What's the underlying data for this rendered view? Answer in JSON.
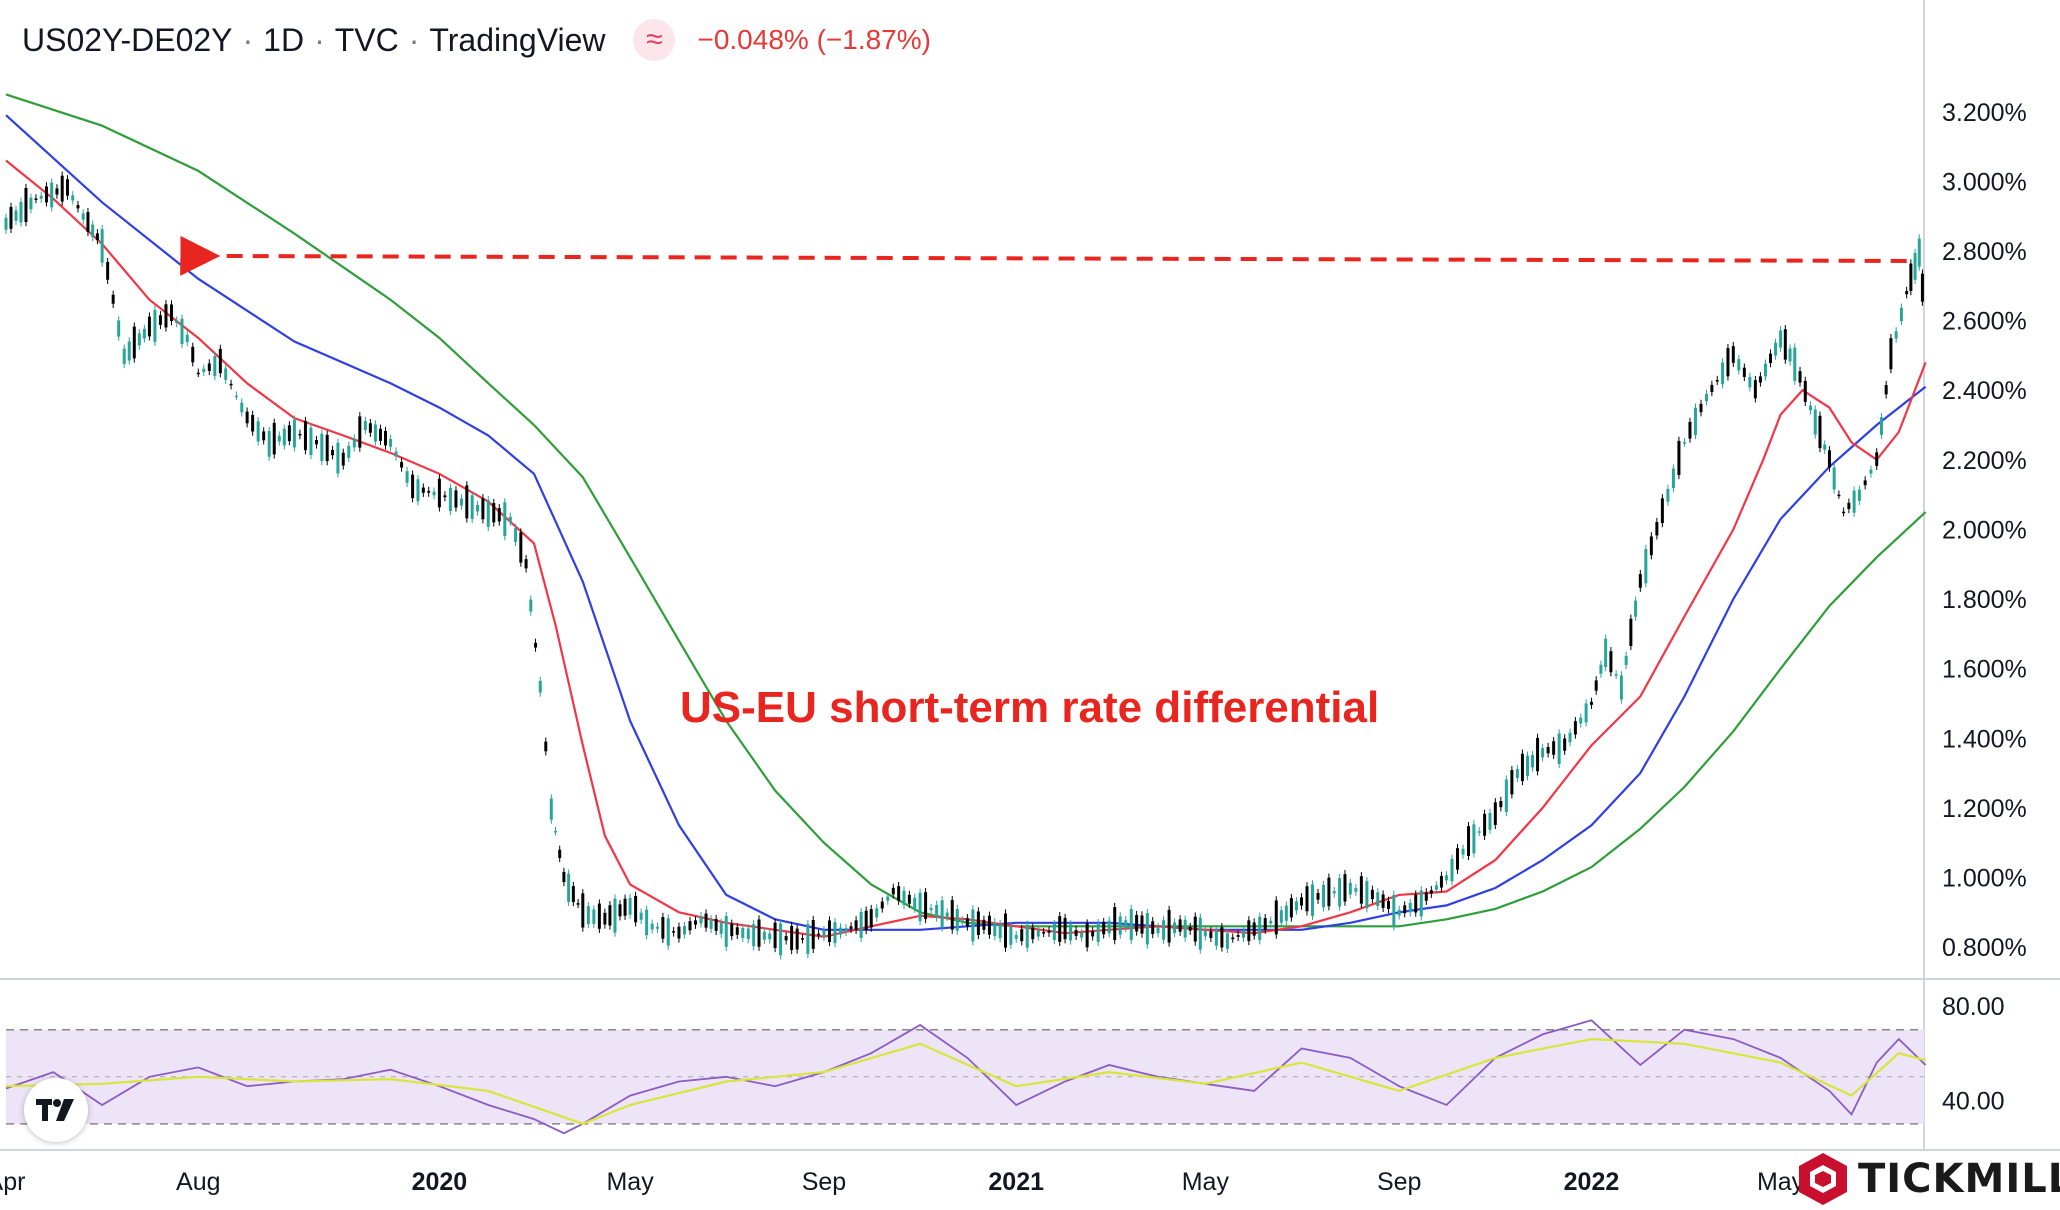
{
  "header": {
    "symbol": "US02Y-DE02Y",
    "interval": "1D",
    "exchange": "TVC",
    "source": "TradingView",
    "change": "−0.048% (−1.87%)",
    "indicator_icon": "wave-icon"
  },
  "annotation": {
    "text": "US-EU short-term rate differential",
    "color": "#e8261f"
  },
  "brand": {
    "name": "TICKMILL",
    "logo_icon": "tickmill-logo-icon"
  },
  "colors": {
    "up": "#26a69a",
    "down": "#000000",
    "ma_fast": "#f23645",
    "ma_mid": "#2e3fe6",
    "ma_slow": "#2e9e3a",
    "rsi": "#8c5bc4",
    "rsi_ma": "#d8e63a",
    "rsi_band": "#ede4f7",
    "annotation": "#e8261f"
  },
  "chart_data": [
    {
      "type": "line",
      "title": "US02Y-DE02Y",
      "y_axis": {
        "ticks": [
          "3.200%",
          "3.000%",
          "2.800%",
          "2.600%",
          "2.400%",
          "2.200%",
          "2.000%",
          "1.800%",
          "1.600%",
          "1.400%",
          "1.200%",
          "1.000%",
          "0.800%"
        ],
        "range": [
          0.72,
          3.32
        ],
        "unit": "%"
      },
      "x_axis": {
        "ticks": [
          "Apr",
          "Aug",
          "2020",
          "May",
          "Sep",
          "2021",
          "May",
          "Sep",
          "2022",
          "May"
        ],
        "bold_ticks": [
          "2020",
          "2021",
          "2022"
        ],
        "range": [
          "2019-04",
          "2022-07"
        ]
      },
      "series": [
        {
          "role": "price",
          "x": [
            "2019-04-01",
            "2019-04-20",
            "2019-05-10",
            "2019-05-20",
            "2019-06-01",
            "2019-06-15",
            "2019-07-01",
            "2019-07-15",
            "2019-07-25",
            "2019-08-01",
            "2019-08-15",
            "2019-09-01",
            "2019-09-15",
            "2019-10-01",
            "2019-10-15",
            "2019-11-01",
            "2019-11-15",
            "2019-12-01",
            "2019-12-15",
            "2020-01-01",
            "2020-01-15",
            "2020-02-01",
            "2020-02-15",
            "2020-02-25",
            "2020-03-05",
            "2020-03-12",
            "2020-03-20",
            "2020-04-01",
            "2020-04-15",
            "2020-05-01",
            "2020-05-15",
            "2020-06-01",
            "2020-06-15",
            "2020-07-01",
            "2020-07-15",
            "2020-08-01",
            "2020-08-15",
            "2020-09-01",
            "2020-09-15",
            "2020-10-01",
            "2020-10-15",
            "2020-11-01",
            "2020-11-15",
            "2020-12-01",
            "2020-12-15",
            "2021-01-01",
            "2021-01-15",
            "2021-02-01",
            "2021-02-15",
            "2021-03-01",
            "2021-03-15",
            "2021-04-01",
            "2021-04-15",
            "2021-05-01",
            "2021-05-15",
            "2021-06-01",
            "2021-06-15",
            "2021-07-01",
            "2021-07-15",
            "2021-08-01",
            "2021-08-15",
            "2021-09-01",
            "2021-09-15",
            "2021-10-01",
            "2021-10-15",
            "2021-11-01",
            "2021-11-15",
            "2021-12-01",
            "2021-12-15",
            "2022-01-01",
            "2022-01-10",
            "2022-01-20",
            "2022-02-01",
            "2022-02-15",
            "2022-03-01",
            "2022-03-15",
            "2022-04-01",
            "2022-04-15",
            "2022-05-01",
            "2022-05-10",
            "2022-05-20",
            "2022-06-01",
            "2022-06-10",
            "2022-06-20",
            "2022-07-01",
            "2022-07-10",
            "2022-07-20",
            "2022-07-28",
            "2022-08-01"
          ],
          "values": [
            2.88,
            2.95,
            2.98,
            2.9,
            2.82,
            2.5,
            2.58,
            2.62,
            2.55,
            2.45,
            2.48,
            2.32,
            2.25,
            2.28,
            2.25,
            2.2,
            2.3,
            2.25,
            2.12,
            2.1,
            2.08,
            2.05,
            2.03,
            1.9,
            1.55,
            1.2,
            1.0,
            0.9,
            0.88,
            0.92,
            0.86,
            0.84,
            0.88,
            0.85,
            0.84,
            0.83,
            0.82,
            0.84,
            0.85,
            0.88,
            0.96,
            0.92,
            0.9,
            0.87,
            0.86,
            0.83,
            0.84,
            0.85,
            0.83,
            0.86,
            0.87,
            0.85,
            0.86,
            0.84,
            0.82,
            0.85,
            0.88,
            0.93,
            0.95,
            0.97,
            0.95,
            0.9,
            0.93,
            1.0,
            1.1,
            1.18,
            1.3,
            1.36,
            1.38,
            1.5,
            1.65,
            1.55,
            1.85,
            2.05,
            2.25,
            2.38,
            2.5,
            2.4,
            2.55,
            2.48,
            2.35,
            2.2,
            2.05,
            2.1,
            2.2,
            2.5,
            2.68,
            2.8,
            2.58
          ]
        },
        {
          "role": "moving-average-fast",
          "x": [
            "2019-04-01",
            "2019-05-01",
            "2019-06-01",
            "2019-07-01",
            "2019-08-01",
            "2019-09-01",
            "2019-10-01",
            "2019-11-01",
            "2019-12-01",
            "2020-01-01",
            "2020-02-01",
            "2020-03-01",
            "2020-03-15",
            "2020-04-01",
            "2020-04-15",
            "2020-05-01",
            "2020-06-01",
            "2020-07-01",
            "2020-08-01",
            "2020-09-01",
            "2020-10-01",
            "2020-11-01",
            "2020-12-01",
            "2021-01-01",
            "2021-02-01",
            "2021-03-01",
            "2021-04-01",
            "2021-05-01",
            "2021-06-01",
            "2021-07-01",
            "2021-08-01",
            "2021-09-01",
            "2021-10-01",
            "2021-11-01",
            "2021-12-01",
            "2022-01-01",
            "2022-02-01",
            "2022-03-01",
            "2022-04-01",
            "2022-04-20",
            "2022-05-01",
            "2022-05-15",
            "2022-06-01",
            "2022-06-15",
            "2022-07-01",
            "2022-07-15",
            "2022-08-01"
          ],
          "values": [
            3.06,
            2.95,
            2.82,
            2.66,
            2.55,
            2.42,
            2.32,
            2.27,
            2.22,
            2.16,
            2.08,
            1.96,
            1.72,
            1.38,
            1.12,
            0.98,
            0.9,
            0.87,
            0.85,
            0.83,
            0.86,
            0.89,
            0.88,
            0.86,
            0.84,
            0.85,
            0.86,
            0.85,
            0.84,
            0.86,
            0.9,
            0.95,
            0.96,
            1.05,
            1.2,
            1.38,
            1.52,
            1.75,
            2.0,
            2.2,
            2.33,
            2.4,
            2.35,
            2.25,
            2.2,
            2.28,
            2.48
          ]
        },
        {
          "role": "moving-average-mid",
          "x": [
            "2019-04-01",
            "2019-06-01",
            "2019-08-01",
            "2019-10-01",
            "2019-12-01",
            "2020-01-01",
            "2020-02-01",
            "2020-03-01",
            "2020-04-01",
            "2020-05-01",
            "2020-06-01",
            "2020-07-01",
            "2020-08-01",
            "2020-09-01",
            "2020-10-01",
            "2020-11-01",
            "2020-12-01",
            "2021-01-01",
            "2021-02-01",
            "2021-03-01",
            "2021-04-01",
            "2021-05-01",
            "2021-06-01",
            "2021-07-01",
            "2021-08-01",
            "2021-09-01",
            "2021-10-01",
            "2021-11-01",
            "2021-12-01",
            "2022-01-01",
            "2022-02-01",
            "2022-03-01",
            "2022-04-01",
            "2022-05-01",
            "2022-06-01",
            "2022-07-01",
            "2022-08-01"
          ],
          "values": [
            3.19,
            2.94,
            2.72,
            2.54,
            2.42,
            2.35,
            2.27,
            2.16,
            1.85,
            1.45,
            1.15,
            0.95,
            0.88,
            0.85,
            0.85,
            0.85,
            0.86,
            0.87,
            0.87,
            0.87,
            0.86,
            0.85,
            0.85,
            0.85,
            0.87,
            0.9,
            0.92,
            0.97,
            1.05,
            1.15,
            1.3,
            1.52,
            1.8,
            2.03,
            2.18,
            2.3,
            2.41
          ]
        },
        {
          "role": "moving-average-slow",
          "x": [
            "2019-04-01",
            "2019-06-01",
            "2019-08-01",
            "2019-10-01",
            "2019-12-01",
            "2020-01-01",
            "2020-02-01",
            "2020-03-01",
            "2020-04-01",
            "2020-05-01",
            "2020-06-01",
            "2020-07-01",
            "2020-08-01",
            "2020-09-01",
            "2020-10-01",
            "2020-11-01",
            "2020-12-01",
            "2021-01-01",
            "2021-02-01",
            "2021-03-01",
            "2021-04-01",
            "2021-05-01",
            "2021-06-01",
            "2021-07-01",
            "2021-08-01",
            "2021-09-01",
            "2021-10-01",
            "2021-11-01",
            "2021-12-01",
            "2022-01-01",
            "2022-02-01",
            "2022-03-01",
            "2022-04-01",
            "2022-05-01",
            "2022-06-01",
            "2022-07-01",
            "2022-08-01"
          ],
          "values": [
            3.25,
            3.16,
            3.03,
            2.85,
            2.66,
            2.55,
            2.42,
            2.3,
            2.15,
            1.92,
            1.68,
            1.45,
            1.25,
            1.1,
            0.98,
            0.9,
            0.87,
            0.86,
            0.86,
            0.86,
            0.86,
            0.86,
            0.86,
            0.86,
            0.86,
            0.86,
            0.88,
            0.91,
            0.96,
            1.03,
            1.14,
            1.26,
            1.42,
            1.6,
            1.78,
            1.92,
            2.05
          ]
        }
      ],
      "reference_line": {
        "style": "dashed",
        "value": 2.78,
        "from": "2019-08-01",
        "to": "2022-07-20",
        "arrow": "left"
      }
    },
    {
      "type": "line",
      "title": "RSI",
      "y_axis": {
        "ticks": [
          "80.00",
          "40.00"
        ],
        "range": [
          21,
          89
        ],
        "band": [
          30,
          70
        ],
        "mid": 50
      },
      "series": [
        {
          "role": "rsi",
          "x": [
            "2019-04-01",
            "2019-05-01",
            "2019-06-01",
            "2019-07-01",
            "2019-08-01",
            "2019-09-01",
            "2019-10-01",
            "2019-11-01",
            "2019-12-01",
            "2020-01-01",
            "2020-02-01",
            "2020-03-01",
            "2020-03-20",
            "2020-04-01",
            "2020-05-01",
            "2020-06-01",
            "2020-07-01",
            "2020-08-01",
            "2020-09-01",
            "2020-10-01",
            "2020-11-01",
            "2020-12-01",
            "2021-01-01",
            "2021-02-01",
            "2021-03-01",
            "2021-04-01",
            "2021-05-01",
            "2021-06-01",
            "2021-07-01",
            "2021-08-01",
            "2021-09-01",
            "2021-10-01",
            "2021-11-01",
            "2021-12-01",
            "2022-01-01",
            "2022-02-01",
            "2022-03-01",
            "2022-04-01",
            "2022-05-01",
            "2022-06-01",
            "2022-06-15",
            "2022-07-01",
            "2022-07-15",
            "2022-08-01"
          ],
          "values": [
            45,
            52,
            38,
            50,
            54,
            46,
            48,
            49,
            53,
            46,
            38,
            32,
            26,
            30,
            42,
            48,
            50,
            46,
            52,
            60,
            72,
            58,
            38,
            48,
            55,
            50,
            47,
            44,
            62,
            58,
            46,
            38,
            58,
            68,
            74,
            55,
            70,
            66,
            58,
            44,
            34,
            56,
            66,
            55
          ]
        },
        {
          "role": "rsi-moving-average",
          "x": [
            "2019-04-01",
            "2019-06-01",
            "2019-08-01",
            "2019-10-01",
            "2019-12-01",
            "2020-02-01",
            "2020-03-15",
            "2020-04-01",
            "2020-05-01",
            "2020-07-01",
            "2020-09-01",
            "2020-11-01",
            "2021-01-01",
            "2021-03-01",
            "2021-05-01",
            "2021-07-01",
            "2021-09-01",
            "2021-11-01",
            "2022-01-01",
            "2022-03-01",
            "2022-05-01",
            "2022-06-15",
            "2022-07-15",
            "2022-08-01"
          ],
          "values": [
            46,
            47,
            50,
            48,
            49,
            44,
            34,
            30,
            38,
            48,
            52,
            64,
            46,
            52,
            47,
            56,
            44,
            58,
            66,
            64,
            56,
            42,
            60,
            57
          ]
        }
      ]
    }
  ]
}
